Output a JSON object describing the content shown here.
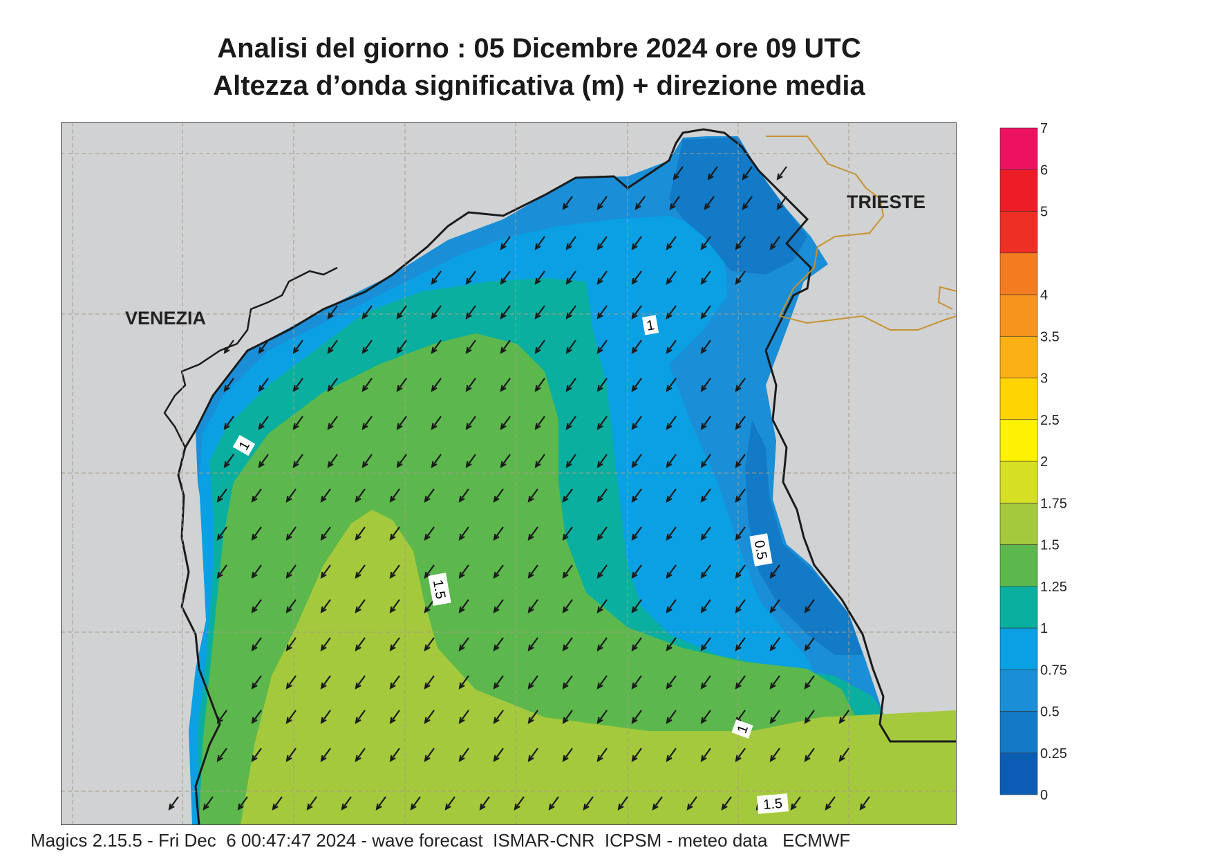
{
  "header": {
    "title_line1": "Analisi del giorno :  05 Dicembre  2024   ore 09 UTC",
    "title_line2": "Altezza d’onda significativa (m) + direzione media"
  },
  "map": {
    "cities": {
      "venezia": "VENEZIA",
      "trieste": "TRIESTE"
    },
    "contour_labels": {
      "c1_west": "1",
      "c1_north": "1",
      "c05_east": "0.5",
      "c15_center": "1.5",
      "c1_south": "1",
      "c15_south": "1.5"
    },
    "arrow_direction": "south-west",
    "colors": {
      "land": "#d0d2d3",
      "coast": "#1a1a1a",
      "border": "#c8922e",
      "grid": "#a89c87"
    }
  },
  "legend": {
    "levels": [
      "0",
      "0.25",
      "0.5",
      "0.75",
      "1",
      "1.25",
      "1.5",
      "1.75",
      "2",
      "2.5",
      "3",
      "3.5",
      "4",
      "4.5",
      "5",
      "6",
      "7"
    ],
    "shown_labels": [
      "0",
      "0.25",
      "0.5",
      "0.75",
      "1",
      "1.25",
      "1.5",
      "1.75",
      "2",
      "2.5",
      "3",
      "3.5",
      "4",
      "5",
      "6",
      "7"
    ],
    "colors": [
      "#0a5db3",
      "#127ac6",
      "#1a8ed6",
      "#0aa0e3",
      "#0aaf9f",
      "#5cb84d",
      "#a5c93c",
      "#d7df24",
      "#fff200",
      "#ffd400",
      "#fbb116",
      "#f7941d",
      "#f47c20",
      "#ee2f24",
      "#ec1d26",
      "#ec1262"
    ]
  },
  "footer": {
    "text": "Magics 2.15.5 - Fri Dec  6 00:47:47 2024 - wave forecast  ISMAR-CNR  ICPSM - meteo data   ECMWF"
  }
}
